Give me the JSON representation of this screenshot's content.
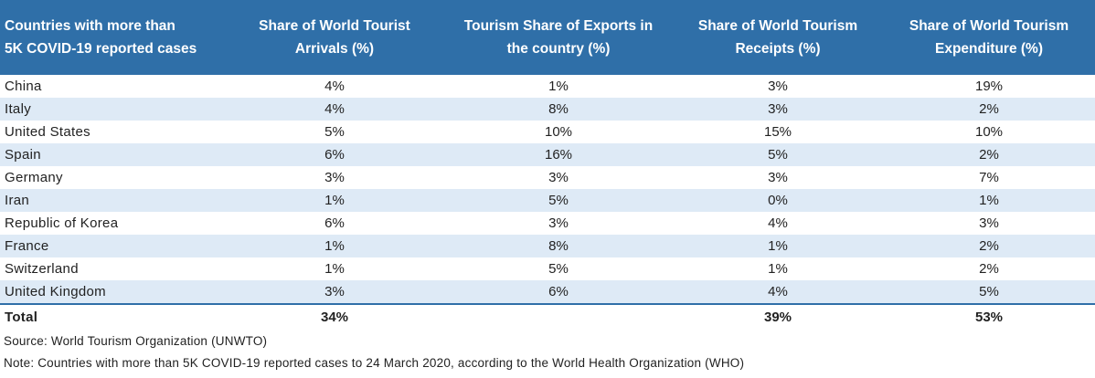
{
  "headers": [
    [
      "Countries with more than",
      "5K COVID-19 reported cases"
    ],
    [
      "Share of World Tourist",
      "Arrivals (%)"
    ],
    [
      "Tourism Share of Exports in",
      "the country (%)"
    ],
    [
      "Share of World Tourism",
      "Receipts (%)"
    ],
    [
      "Share of World Tourism",
      "Expenditure (%)"
    ]
  ],
  "rows": [
    [
      "China",
      "4%",
      "1%",
      "3%",
      "19%"
    ],
    [
      "Italy",
      "4%",
      "8%",
      "3%",
      "2%"
    ],
    [
      "United States",
      "5%",
      "10%",
      "15%",
      "10%"
    ],
    [
      "Spain",
      "6%",
      "16%",
      "5%",
      "2%"
    ],
    [
      "Germany",
      "3%",
      "3%",
      "3%",
      "7%"
    ],
    [
      "Iran",
      "1%",
      "5%",
      "0%",
      "1%"
    ],
    [
      "Republic of Korea",
      "6%",
      "3%",
      "4%",
      "3%"
    ],
    [
      "France",
      "1%",
      "8%",
      "1%",
      "2%"
    ],
    [
      "Switzerland",
      "1%",
      "5%",
      "1%",
      "2%"
    ],
    [
      "United Kingdom",
      "3%",
      "6%",
      "4%",
      "5%"
    ]
  ],
  "total": [
    "Total",
    "34%",
    "",
    "39%",
    "53%"
  ],
  "source": "Source: World Tourism Organization (UNWTO)",
  "note": "Note: Countries with more than 5K COVID-19 reported cases to 24 March 2020, according to the World Health Organization (WHO)",
  "colors": {
    "header_bg": "#2f6fa8",
    "stripe_bg": "#deeaf6",
    "text": "#222222"
  }
}
